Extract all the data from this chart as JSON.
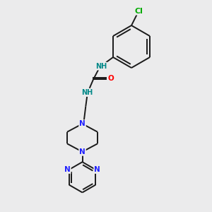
{
  "background_color": "#ebebec",
  "bond_color": "#1a1a1a",
  "nitrogen_color": "#2020ff",
  "oxygen_color": "#ff0000",
  "chlorine_color": "#00aa00",
  "hydrogen_color": "#008888",
  "figsize": [
    3.0,
    3.0
  ],
  "dpi": 100,
  "xlim": [
    0,
    10
  ],
  "ylim": [
    0,
    10
  ]
}
